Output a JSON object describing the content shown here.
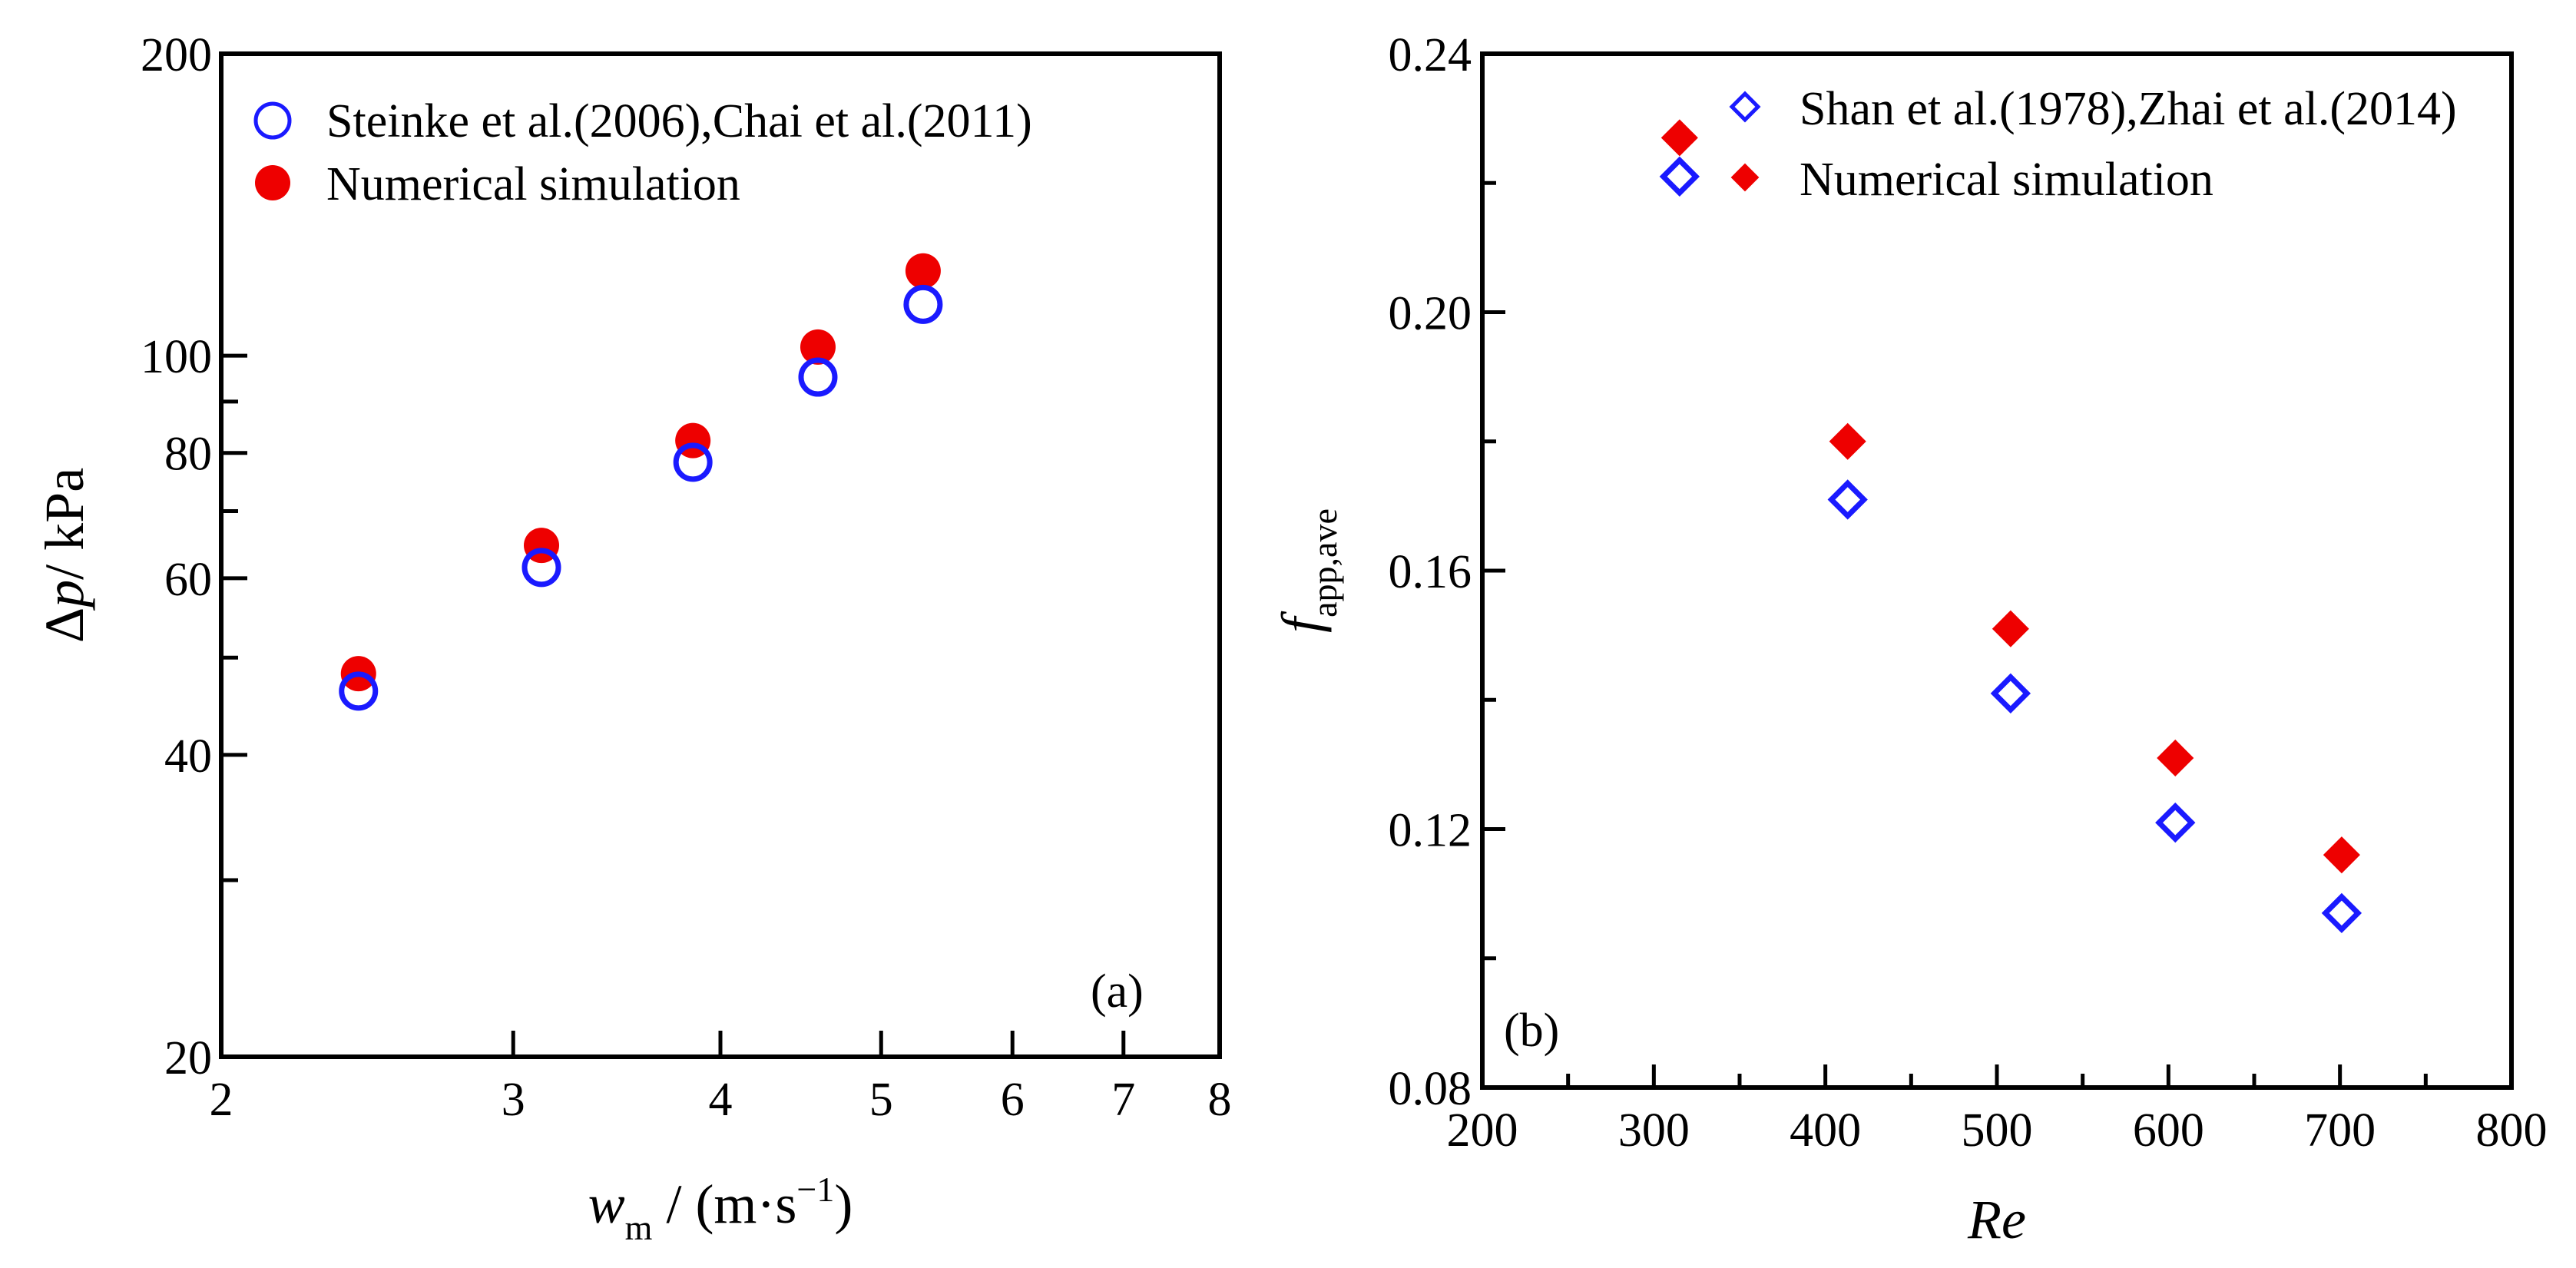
{
  "colors": {
    "experiment": "#1a1aff",
    "simulation": "#ee0000",
    "axis": "#000000"
  },
  "chart_data": [
    {
      "panel": "(a)",
      "type": "scatter",
      "xscale": "log",
      "yscale": "log",
      "xlim": [
        2,
        8
      ],
      "ylim": [
        20,
        200
      ],
      "xticks": [
        {
          "value": 2,
          "label": "2"
        },
        {
          "value": 3,
          "label": "3"
        },
        {
          "value": 4,
          "label": "4"
        },
        {
          "value": 5,
          "label": "5"
        },
        {
          "value": 6,
          "label": "6"
        },
        {
          "value": 7,
          "label": "7"
        },
        {
          "value": 8,
          "label": "8"
        }
      ],
      "yticks_major": [
        {
          "value": 20,
          "label": "20"
        },
        {
          "value": 40,
          "label": "40"
        },
        {
          "value": 60,
          "label": "60"
        },
        {
          "value": 80,
          "label": "80"
        },
        {
          "value": 100,
          "label": "100"
        },
        {
          "value": 200,
          "label": "200"
        }
      ],
      "yticks_minor": [
        30,
        50,
        70,
        90
      ],
      "xlabel": {
        "symbol": "w",
        "subscript": "m",
        "unit": " / (m·s",
        "superscript": "−1",
        "close": ")"
      },
      "ylabel": {
        "prefix": "Δ",
        "symbol": "p",
        "unit": "/ kPa"
      },
      "legend_position": "top-left",
      "series": [
        {
          "name": "Steinke et al.(2006),Chai et al.(2011)",
          "marker": "open-circle",
          "color": "#1a1aff",
          "x": [
            2.42,
            3.12,
            3.85,
            4.58,
            5.3
          ],
          "y": [
            46.3,
            61.5,
            78.3,
            95.2,
            112.5
          ]
        },
        {
          "name": "Numerical simulation",
          "marker": "filled-circle",
          "color": "#ee0000",
          "x": [
            2.42,
            3.12,
            3.85,
            4.58,
            5.3
          ],
          "y": [
            48.2,
            64.7,
            82.3,
            102.0,
            121.5
          ]
        }
      ]
    },
    {
      "panel": "(b)",
      "type": "scatter",
      "xscale": "linear",
      "yscale": "linear",
      "xlim": [
        200,
        800
      ],
      "ylim": [
        0.08,
        0.24
      ],
      "xticks": [
        {
          "value": 200,
          "label": "200"
        },
        {
          "value": 300,
          "label": "300"
        },
        {
          "value": 400,
          "label": "400"
        },
        {
          "value": 500,
          "label": "500"
        },
        {
          "value": 600,
          "label": "600"
        },
        {
          "value": 700,
          "label": "700"
        },
        {
          "value": 800,
          "label": "800"
        }
      ],
      "yticks": [
        {
          "value": 0.08,
          "label": "0.08"
        },
        {
          "value": 0.12,
          "label": "0.12"
        },
        {
          "value": 0.16,
          "label": "0.16"
        },
        {
          "value": 0.2,
          "label": "0.20"
        },
        {
          "value": 0.24,
          "label": "0.24"
        }
      ],
      "xlabel": {
        "symbol": "Re"
      },
      "ylabel": {
        "symbol": "f",
        "subscript": "app,ave"
      },
      "legend_position": "top",
      "series": [
        {
          "name": "Shan et al.(1978),Zhai et al.(2014)",
          "marker": "open-diamond",
          "color": "#1a1aff",
          "x": [
            315,
            413,
            508,
            604,
            701
          ],
          "y": [
            0.221,
            0.171,
            0.141,
            0.121,
            0.107
          ]
        },
        {
          "name": "Numerical simulation",
          "marker": "filled-diamond",
          "color": "#ee0000",
          "x": [
            315,
            413,
            508,
            604,
            701
          ],
          "y": [
            0.227,
            0.18,
            0.151,
            0.131,
            0.116
          ]
        }
      ]
    }
  ]
}
